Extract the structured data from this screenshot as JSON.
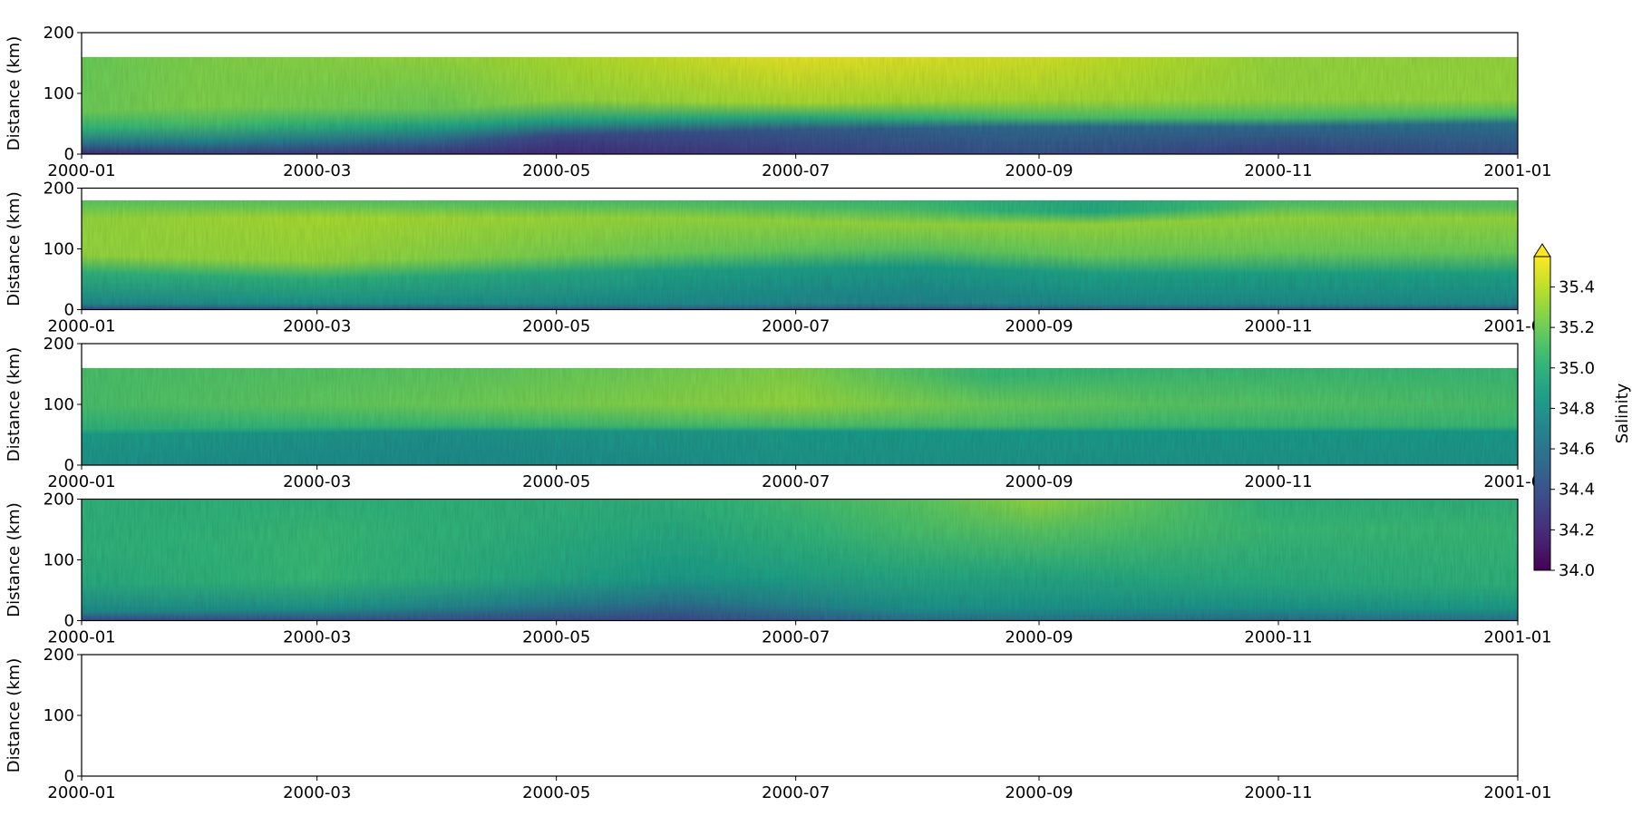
{
  "chart_data": {
    "type": "heatmap",
    "colormap": "viridis",
    "colorbar": {
      "label": "Salinity",
      "range": [
        34.0,
        35.55
      ],
      "ticks": [
        34.0,
        34.2,
        34.4,
        34.6,
        34.8,
        35.0,
        35.2,
        35.4
      ],
      "tick_labels": [
        "34.0",
        "34.2",
        "34.4",
        "34.6",
        "34.8",
        "35.0",
        "35.2",
        "35.4"
      ],
      "extend": "max"
    },
    "x_range": [
      "2000-01-01",
      "2001-01-01"
    ],
    "x_ticks": [
      "2000-01-01",
      "2000-03-01",
      "2000-05-01",
      "2000-07-01",
      "2000-09-01",
      "2000-11-01",
      "2001-01-01"
    ],
    "x_tick_labels": [
      "2000-01",
      "2000-03",
      "2000-05",
      "2000-07",
      "2000-09",
      "2000-11",
      "2001-01"
    ],
    "y_ticks": [
      0,
      100,
      200
    ],
    "y_tick_labels": [
      "0",
      "100",
      "200"
    ],
    "panels": [
      {
        "ylabel": "Distance (km)",
        "ylim": [
          0,
          200
        ],
        "data_top_km": 160,
        "empty": false,
        "profile": [
          {
            "date": "2000-01-01",
            "layers": [
              [
                0,
                34.2
              ],
              [
                15,
                34.55
              ],
              [
                40,
                35.0
              ],
              [
                70,
                35.2
              ],
              [
                160,
                35.2
              ]
            ]
          },
          {
            "date": "2000-02-01",
            "layers": [
              [
                0,
                34.3
              ],
              [
                20,
                34.7
              ],
              [
                50,
                35.1
              ],
              [
                80,
                35.25
              ],
              [
                160,
                35.25
              ]
            ]
          },
          {
            "date": "2000-04-01",
            "layers": [
              [
                0,
                34.25
              ],
              [
                20,
                34.5
              ],
              [
                45,
                34.9
              ],
              [
                75,
                35.2
              ],
              [
                160,
                35.3
              ]
            ]
          },
          {
            "date": "2000-05-01",
            "layers": [
              [
                0,
                34.2
              ],
              [
                30,
                34.35
              ],
              [
                55,
                34.9
              ],
              [
                90,
                35.3
              ],
              [
                160,
                35.35
              ]
            ]
          },
          {
            "date": "2000-07-01",
            "layers": [
              [
                0,
                34.3
              ],
              [
                40,
                34.45
              ],
              [
                60,
                34.95
              ],
              [
                85,
                35.35
              ],
              [
                160,
                35.5
              ]
            ]
          },
          {
            "date": "2000-09-01",
            "layers": [
              [
                0,
                34.4
              ],
              [
                45,
                34.55
              ],
              [
                60,
                35.1
              ],
              [
                90,
                35.35
              ],
              [
                160,
                35.45
              ]
            ]
          },
          {
            "date": "2000-11-01",
            "layers": [
              [
                0,
                34.3
              ],
              [
                45,
                34.55
              ],
              [
                60,
                35.1
              ],
              [
                90,
                35.3
              ],
              [
                160,
                35.3
              ]
            ]
          },
          {
            "date": "2001-01-01",
            "layers": [
              [
                0,
                34.4
              ],
              [
                50,
                34.6
              ],
              [
                65,
                35.1
              ],
              [
                90,
                35.3
              ],
              [
                160,
                35.3
              ]
            ]
          }
        ]
      },
      {
        "ylabel": "Distance (km)",
        "ylim": [
          0,
          200
        ],
        "data_top_km": 180,
        "empty": false,
        "profile": [
          {
            "date": "2000-01-01",
            "layers": [
              [
                0,
                34.35
              ],
              [
                10,
                34.75
              ],
              [
                60,
                35.0
              ],
              [
                90,
                35.3
              ],
              [
                150,
                35.3
              ],
              [
                170,
                35.2
              ],
              [
                180,
                35.15
              ]
            ]
          },
          {
            "date": "2000-03-01",
            "layers": [
              [
                0,
                34.4
              ],
              [
                10,
                34.8
              ],
              [
                50,
                35.0
              ],
              [
                80,
                35.3
              ],
              [
                150,
                35.35
              ],
              [
                170,
                35.2
              ],
              [
                180,
                35.15
              ]
            ]
          },
          {
            "date": "2000-06-01",
            "layers": [
              [
                0,
                34.45
              ],
              [
                10,
                34.75
              ],
              [
                65,
                34.9
              ],
              [
                95,
                35.2
              ],
              [
                150,
                35.3
              ],
              [
                170,
                35.15
              ],
              [
                180,
                35.1
              ]
            ]
          },
          {
            "date": "2000-08-01",
            "layers": [
              [
                0,
                34.4
              ],
              [
                10,
                34.7
              ],
              [
                70,
                34.85
              ],
              [
                100,
                35.15
              ],
              [
                140,
                35.3
              ],
              [
                165,
                35.1
              ],
              [
                180,
                35.05
              ]
            ]
          },
          {
            "date": "2000-09-15",
            "layers": [
              [
                0,
                34.45
              ],
              [
                10,
                34.75
              ],
              [
                60,
                34.9
              ],
              [
                90,
                35.2
              ],
              [
                140,
                35.3
              ],
              [
                160,
                34.95
              ],
              [
                180,
                34.95
              ]
            ]
          },
          {
            "date": "2000-11-01",
            "layers": [
              [
                0,
                34.4
              ],
              [
                10,
                34.75
              ],
              [
                60,
                34.9
              ],
              [
                95,
                35.2
              ],
              [
                150,
                35.3
              ],
              [
                170,
                35.15
              ],
              [
                180,
                35.1
              ]
            ]
          },
          {
            "date": "2001-01-01",
            "layers": [
              [
                0,
                34.4
              ],
              [
                10,
                34.75
              ],
              [
                60,
                34.9
              ],
              [
                95,
                35.2
              ],
              [
                150,
                35.3
              ],
              [
                170,
                35.15
              ],
              [
                180,
                35.15
              ]
            ]
          }
        ]
      },
      {
        "ylabel": "Distance (km)",
        "ylim": [
          0,
          200
        ],
        "data_top_km": 160,
        "empty": false,
        "profile": [
          {
            "date": "2000-01-01",
            "layers": [
              [
                0,
                34.8
              ],
              [
                50,
                34.85
              ],
              [
                60,
                35.0
              ],
              [
                100,
                35.1
              ],
              [
                160,
                35.1
              ]
            ]
          },
          {
            "date": "2000-04-01",
            "layers": [
              [
                0,
                34.75
              ],
              [
                55,
                34.8
              ],
              [
                65,
                35.05
              ],
              [
                100,
                35.2
              ],
              [
                160,
                35.15
              ]
            ]
          },
          {
            "date": "2000-07-01",
            "layers": [
              [
                0,
                34.8
              ],
              [
                55,
                34.85
              ],
              [
                65,
                35.1
              ],
              [
                100,
                35.3
              ],
              [
                160,
                35.25
              ]
            ]
          },
          {
            "date": "2000-08-20",
            "layers": [
              [
                0,
                34.8
              ],
              [
                55,
                34.85
              ],
              [
                65,
                35.1
              ],
              [
                100,
                35.2
              ],
              [
                145,
                35.05
              ],
              [
                160,
                34.8
              ]
            ]
          },
          {
            "date": "2000-10-01",
            "layers": [
              [
                0,
                34.8
              ],
              [
                55,
                34.85
              ],
              [
                65,
                35.05
              ],
              [
                100,
                35.15
              ],
              [
                160,
                35.05
              ]
            ]
          },
          {
            "date": "2001-01-01",
            "layers": [
              [
                0,
                34.8
              ],
              [
                55,
                34.85
              ],
              [
                65,
                35.05
              ],
              [
                100,
                35.1
              ],
              [
                160,
                35.05
              ]
            ]
          }
        ]
      },
      {
        "ylabel": "Distance (km)",
        "ylim": [
          0,
          200
        ],
        "data_top_km": 200,
        "empty": false,
        "profile": [
          {
            "date": "2000-01-01",
            "layers": [
              [
                0,
                34.35
              ],
              [
                15,
                34.75
              ],
              [
                60,
                34.95
              ],
              [
                120,
                35.0
              ],
              [
                200,
                35.0
              ]
            ]
          },
          {
            "date": "2000-03-01",
            "layers": [
              [
                0,
                34.4
              ],
              [
                20,
                34.8
              ],
              [
                70,
                35.05
              ],
              [
                150,
                35.05
              ],
              [
                200,
                35.0
              ]
            ]
          },
          {
            "date": "2000-06-01",
            "layers": [
              [
                0,
                34.35
              ],
              [
                30,
                34.6
              ],
              [
                70,
                34.85
              ],
              [
                150,
                34.95
              ],
              [
                200,
                35.0
              ]
            ]
          },
          {
            "date": "2000-08-01",
            "layers": [
              [
                0,
                34.55
              ],
              [
                20,
                34.8
              ],
              [
                80,
                34.95
              ],
              [
                150,
                35.1
              ],
              [
                200,
                35.15
              ]
            ]
          },
          {
            "date": "2000-09-01",
            "layers": [
              [
                0,
                34.6
              ],
              [
                20,
                34.8
              ],
              [
                80,
                34.95
              ],
              [
                150,
                35.15
              ],
              [
                200,
                35.3
              ]
            ]
          },
          {
            "date": "2000-11-01",
            "layers": [
              [
                0,
                34.55
              ],
              [
                20,
                34.8
              ],
              [
                60,
                34.95
              ],
              [
                150,
                35.05
              ],
              [
                200,
                35.0
              ]
            ]
          },
          {
            "date": "2001-01-01",
            "layers": [
              [
                0,
                34.6
              ],
              [
                20,
                34.85
              ],
              [
                60,
                35.0
              ],
              [
                150,
                35.05
              ],
              [
                200,
                35.0
              ]
            ]
          }
        ]
      },
      {
        "ylabel": "Distance (km)",
        "ylim": [
          0,
          200
        ],
        "data_top_km": 0,
        "empty": true,
        "profile": []
      }
    ]
  }
}
